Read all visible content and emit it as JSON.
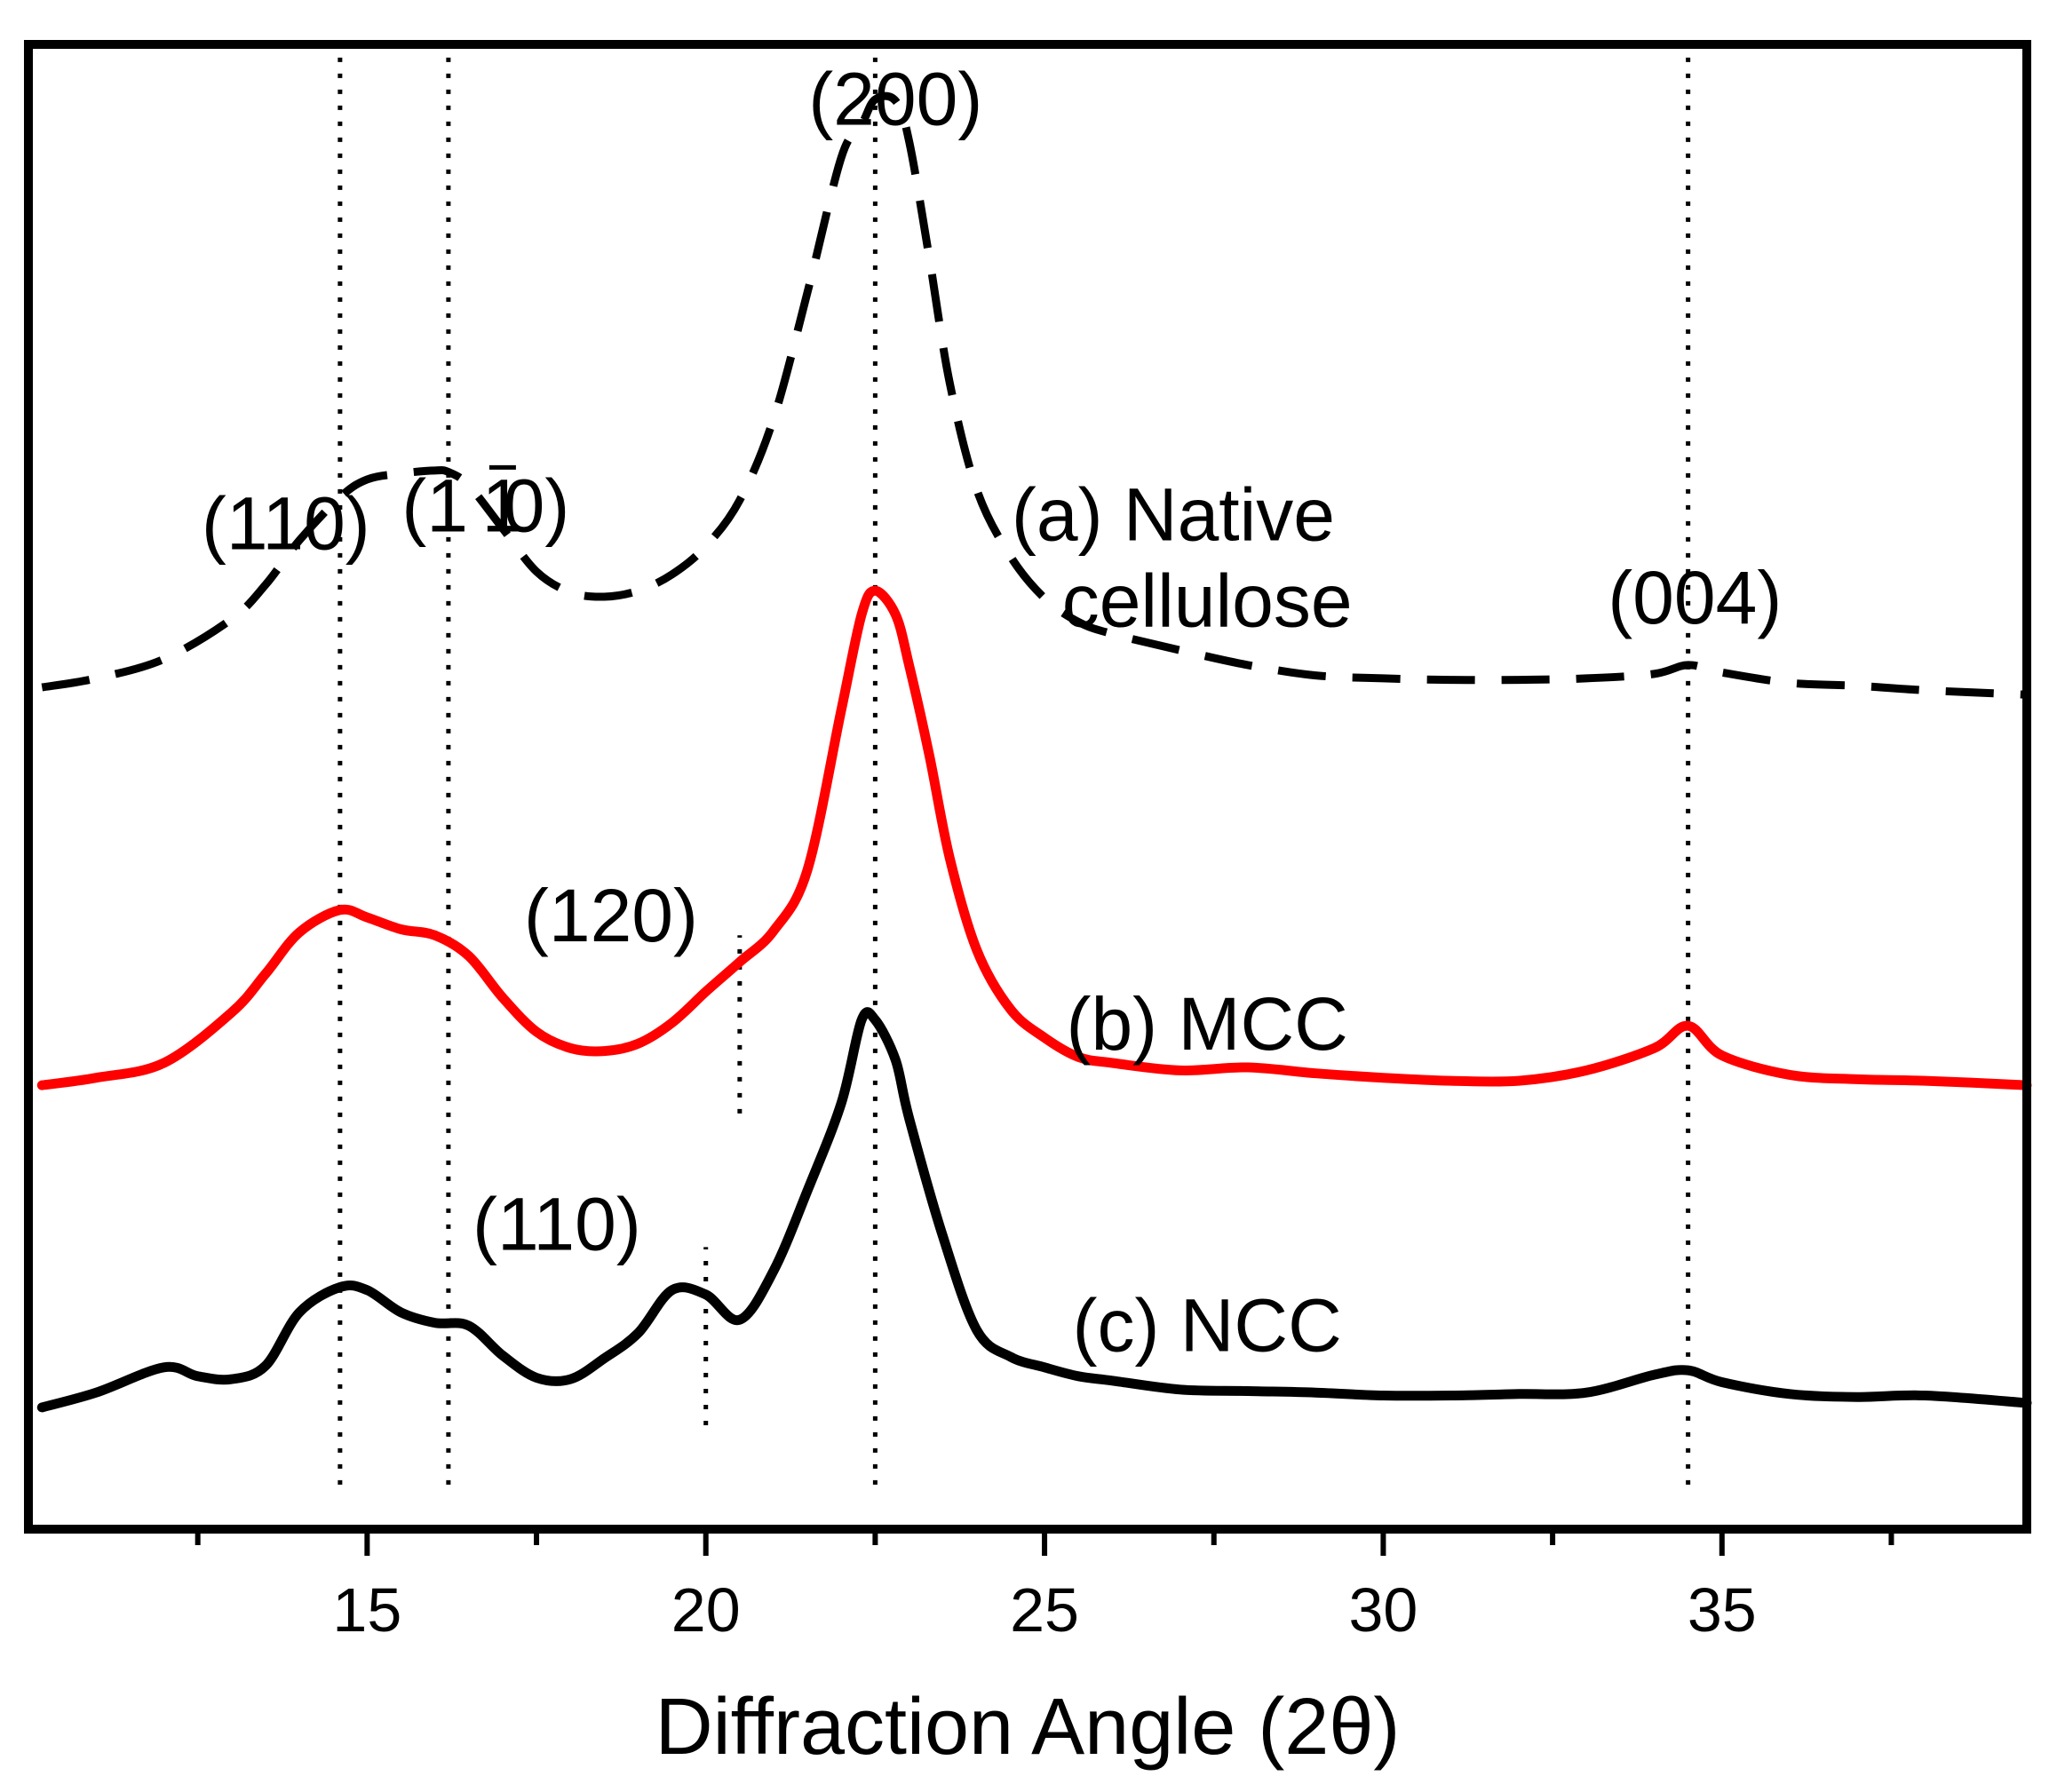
{
  "chart_data": {
    "type": "line",
    "title": "",
    "xlabel": "Diffraction Angle (2θ)",
    "ylabel": "",
    "xlim": [
      10,
      39.5
    ],
    "ylim": [
      0,
      100
    ],
    "major_ticks": [
      15,
      20,
      25,
      30,
      35
    ],
    "minor_ticks": [
      12.5,
      17.5,
      22.5,
      27.5,
      32.5,
      37.5
    ],
    "grid": false,
    "legend": "none (series labelled inline)",
    "colors": {
      "native": "#000000",
      "mcc": "#ff0000",
      "ncc": "#000000",
      "frame": "#000000",
      "reference_lines": "#000000"
    },
    "reference_lines": [
      {
        "x": 14.6,
        "y_from": 3,
        "y_to": 100
      },
      {
        "x": 16.2,
        "y_from": 3,
        "y_to": 100
      },
      {
        "x": 22.5,
        "y_from": 3,
        "y_to": 100
      },
      {
        "x": 34.5,
        "y_from": 3,
        "y_to": 100
      },
      {
        "x": 20.5,
        "y_from": 28,
        "y_to": 40
      },
      {
        "x": 20.0,
        "y_from": 7,
        "y_to": 19
      }
    ],
    "series": [
      {
        "name": "(a) Native cellulose",
        "style": "dashed",
        "x": [
          10.2,
          11,
          12,
          13,
          13.5,
          14,
          14.6,
          15,
          15.5,
          16,
          16.2,
          16.5,
          17,
          17.5,
          18,
          18.5,
          19,
          19.5,
          20,
          20.5,
          21,
          21.5,
          22,
          22.3,
          22.5,
          22.8,
          23,
          23.3,
          23.6,
          24,
          24.5,
          25,
          25.5,
          26,
          27,
          28,
          29,
          30,
          31,
          32,
          33,
          34,
          34.5,
          35,
          36,
          37,
          38,
          39.5
        ],
        "y": [
          56.7,
          57.3,
          58.6,
          61.3,
          63.6,
          66.6,
          69.5,
          70.7,
          71.1,
          71.3,
          71.2,
          70.3,
          67.4,
          64.5,
          63.1,
          62.8,
          63.2,
          64.3,
          66.2,
          69.3,
          74.8,
          83.3,
          92.4,
          94.6,
          96.3,
          96.2,
          93.5,
          85.6,
          77.2,
          70.0,
          65.5,
          62.7,
          61.1,
          60.3,
          59.2,
          58.2,
          57.5,
          57.3,
          57.2,
          57.2,
          57.3,
          57.6,
          58.2,
          57.7,
          57.0,
          56.8,
          56.5,
          56.2
        ]
      },
      {
        "name": "(b) MCC",
        "style": "solid",
        "x": [
          10.2,
          11,
          12,
          13,
          13.5,
          14,
          14.6,
          15,
          15.5,
          16,
          16.5,
          17,
          17.5,
          18,
          18.5,
          19,
          19.5,
          20,
          20.5,
          21,
          21.5,
          22,
          22.3,
          22.5,
          22.8,
          23,
          23.3,
          23.6,
          24,
          24.5,
          25,
          25.5,
          26,
          27,
          28,
          29,
          30,
          31,
          32,
          33,
          34,
          34.5,
          35,
          36,
          37,
          38,
          39.5
        ],
        "y": [
          29.9,
          30.4,
          31.4,
          34.8,
          37.4,
          40.2,
          41.7,
          41.2,
          40.4,
          40.0,
          38.6,
          35.8,
          33.5,
          32.4,
          32.2,
          32.7,
          34.1,
          36.2,
          38.2,
          40.3,
          44.4,
          55.2,
          61.6,
          63.2,
          61.6,
          58.2,
          52.1,
          45.2,
          39.0,
          35.0,
          33.1,
          31.8,
          31.4,
          30.9,
          31.1,
          30.7,
          30.4,
          30.2,
          30.2,
          30.9,
          32.4,
          33.9,
          31.9,
          30.6,
          30.3,
          30.2,
          29.9
        ]
      },
      {
        "name": "(c) NCC",
        "style": "solid",
        "x": [
          10.2,
          11,
          12,
          12.5,
          13,
          13.5,
          14,
          14.6,
          15,
          15.5,
          16,
          16.5,
          17,
          17.5,
          18,
          18.5,
          19,
          19.5,
          20,
          20.5,
          21,
          21.5,
          22,
          22.3,
          22.5,
          22.8,
          23,
          23.5,
          24,
          24.5,
          25,
          25.5,
          26,
          27,
          28,
          29,
          30,
          31,
          32,
          33,
          34,
          34.5,
          35,
          36,
          37,
          38,
          39.5
        ],
        "y": [
          8.2,
          9.2,
          10.9,
          10.3,
          10.1,
          11.0,
          14.6,
          16.3,
          16.1,
          14.6,
          13.9,
          13.7,
          11.7,
          10.2,
          10.1,
          11.5,
          13.2,
          16.1,
          15.8,
          14.1,
          17.4,
          22.8,
          28.7,
          34.3,
          34.3,
          31.6,
          27.7,
          19.7,
          13.4,
          11.6,
          10.9,
          10.3,
          10.0,
          9.4,
          9.3,
          9.2,
          9.0,
          9.0,
          9.1,
          9.2,
          10.4,
          10.7,
          9.9,
          9.1,
          8.9,
          9.0,
          8.5
        ]
      }
    ],
    "annotations": [
      {
        "text": "(110)",
        "x": 13.8,
        "y": 66
      },
      {
        "text": "(1",
        "x": 16.0,
        "y": 67.2
      },
      {
        "text": "1",
        "x": 17.0,
        "y": 67.2,
        "overline": true
      },
      {
        "text": "0)",
        "x": 17.5,
        "y": 67.2
      },
      {
        "text": "(200)",
        "x": 22.8,
        "y": 94.6
      },
      {
        "text": "(004)",
        "x": 34.6,
        "y": 61
      },
      {
        "text": "(120)",
        "x": 18.6,
        "y": 39.6
      },
      {
        "text": "(110)",
        "x": 17.8,
        "y": 18.8
      },
      {
        "text": "(a) Native",
        "x": 26.9,
        "y": 66.6
      },
      {
        "text": "cellulose",
        "x": 27.4,
        "y": 60.8
      },
      {
        "text": "(b) MCC",
        "x": 27.4,
        "y": 32.3
      },
      {
        "text": "(c) NCC",
        "x": 27.4,
        "y": 12.0
      }
    ]
  }
}
